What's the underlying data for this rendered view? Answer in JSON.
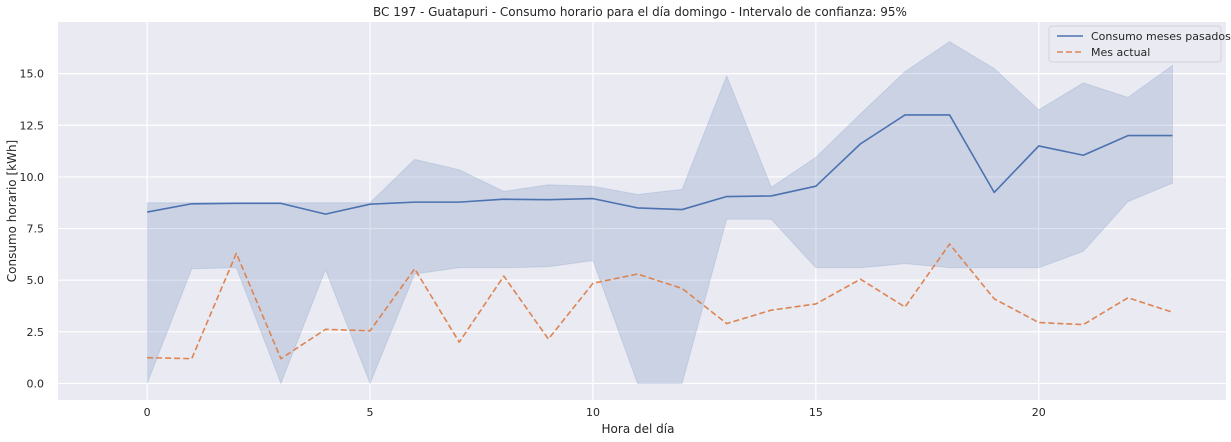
{
  "chart_data": {
    "type": "line",
    "title": "BC 197 - Guatapuri - Consumo horario para el día domingo - Intervalo de confianza: 95%",
    "xlabel": "Hora del día",
    "ylabel": "Consumo horario [kWh]",
    "xlim": [
      -2,
      24.2
    ],
    "ylim": [
      -0.8,
      17.5
    ],
    "xticks": [
      0,
      5,
      10,
      15,
      20
    ],
    "yticks": [
      0.0,
      2.5,
      5.0,
      7.5,
      10.0,
      12.5,
      15.0
    ],
    "ytick_labels": [
      "0.0",
      "2.5",
      "5.0",
      "7.5",
      "10.0",
      "12.5",
      "15.0"
    ],
    "x": [
      0,
      1,
      2,
      3,
      4,
      5,
      6,
      7,
      8,
      9,
      10,
      11,
      12,
      13,
      14,
      15,
      16,
      17,
      18,
      19,
      20,
      21,
      22,
      23
    ],
    "series": [
      {
        "name": "Consumo meses pasados",
        "style": "solid",
        "color": "#4c72b0",
        "values": [
          8.3,
          8.7,
          8.72,
          8.72,
          8.2,
          8.68,
          8.78,
          8.78,
          8.92,
          8.9,
          8.95,
          8.5,
          8.42,
          9.05,
          9.08,
          9.55,
          11.6,
          13.0,
          13.0,
          9.25,
          11.5,
          11.05,
          12.0,
          12.0
        ],
        "ci_lower": [
          0.0,
          5.55,
          5.6,
          0.0,
          5.5,
          0.0,
          5.3,
          5.6,
          5.6,
          5.65,
          5.95,
          0.0,
          0.0,
          7.95,
          7.95,
          5.6,
          5.6,
          5.8,
          5.6,
          5.6,
          5.6,
          6.4,
          8.8,
          9.7
        ],
        "ci_upper": [
          8.75,
          8.75,
          8.75,
          8.75,
          8.75,
          8.75,
          10.85,
          10.35,
          9.3,
          9.62,
          9.55,
          9.15,
          9.4,
          14.9,
          9.5,
          10.95,
          13.05,
          15.1,
          16.55,
          15.25,
          13.25,
          14.55,
          13.85,
          15.4
        ]
      },
      {
        "name": "Mes actual",
        "style": "dashed",
        "color": "#dd8452",
        "values": [
          1.25,
          1.2,
          6.3,
          1.2,
          2.62,
          2.55,
          5.55,
          2.0,
          5.2,
          2.15,
          4.85,
          5.3,
          4.6,
          2.9,
          3.55,
          3.85,
          5.05,
          3.7,
          6.75,
          4.1,
          2.95,
          2.85,
          4.15,
          3.45
        ]
      }
    ],
    "ci_color": "#4c72b0",
    "background": "#eaeaf2",
    "grid": true,
    "legend_position": "top-right"
  }
}
